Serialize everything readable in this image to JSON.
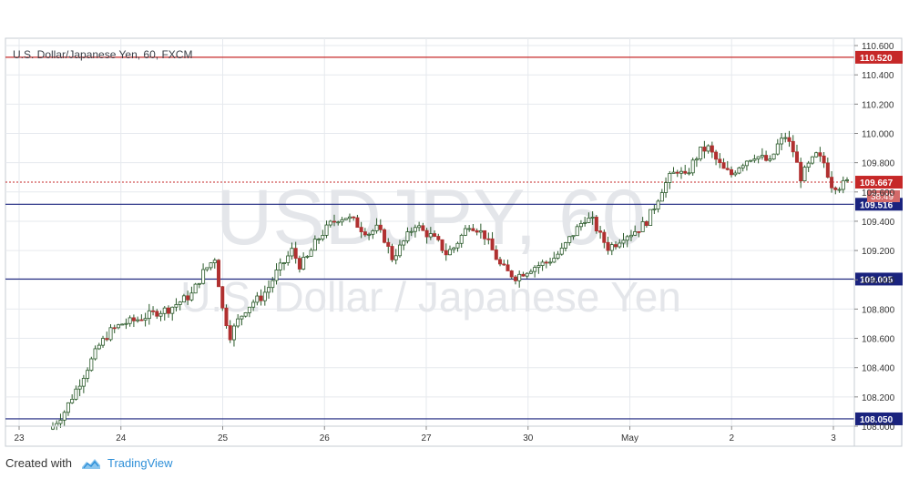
{
  "header": {
    "symbol_title": "U.S. Dollar/Japanese Yen, 60, FXCM"
  },
  "watermark": {
    "line1": "USDJPY, 60",
    "line2": "U.S. Dollar / Japanese Yen"
  },
  "footer": {
    "created_with": "Created with",
    "brand": "TradingView"
  },
  "colors": {
    "up": "#ffffff",
    "down": "#b03030",
    "candle_border": "#2a5a2a",
    "resistance_line": "#c62828",
    "support_line": "#1a237e",
    "current_price_line": "#c62828",
    "grid": "#e6e9ee"
  },
  "chart_data": {
    "type": "candlestick",
    "title": "U.S. Dollar/Japanese Yen, 60, FXCM",
    "ylim": [
      108.0,
      110.65
    ],
    "y_ticks": [
      "110.600",
      "110.400",
      "110.200",
      "110.000",
      "109.800",
      "109.600",
      "109.400",
      "109.200",
      "109.000",
      "108.800",
      "108.600",
      "108.400",
      "108.200",
      "108.000"
    ],
    "x_ticks": [
      "23",
      "24",
      "25",
      "26",
      "27",
      "30",
      "May",
      "2",
      "3"
    ],
    "horizontal_lines": [
      {
        "value": 110.52,
        "label": "110.520",
        "role": "resistance"
      },
      {
        "value": 109.516,
        "label": "109.516",
        "role": "support"
      },
      {
        "value": 109.005,
        "label": "109.005",
        "role": "support"
      },
      {
        "value": 108.05,
        "label": "108.050",
        "role": "support"
      }
    ],
    "current_price": {
      "value": 109.667,
      "label": "109.667",
      "countdown": "38:49"
    },
    "close_path": [
      [
        0,
        108.0
      ],
      [
        3,
        108.1
      ],
      [
        6,
        108.25
      ],
      [
        9,
        108.4
      ],
      [
        12,
        108.55
      ],
      [
        15,
        108.65
      ],
      [
        18,
        108.7
      ],
      [
        21,
        108.72
      ],
      [
        24,
        108.75
      ],
      [
        27,
        108.78
      ],
      [
        30,
        108.8
      ],
      [
        33,
        108.85
      ],
      [
        36,
        108.9
      ],
      [
        39,
        109.05
      ],
      [
        42,
        109.15
      ],
      [
        44,
        108.8
      ],
      [
        46,
        108.62
      ],
      [
        48,
        108.72
      ],
      [
        50,
        108.8
      ],
      [
        52,
        108.85
      ],
      [
        54,
        108.88
      ],
      [
        56,
        108.95
      ],
      [
        58,
        109.05
      ],
      [
        60,
        109.12
      ],
      [
        62,
        109.2
      ],
      [
        64,
        109.1
      ],
      [
        66,
        109.15
      ],
      [
        68,
        109.25
      ],
      [
        70,
        109.32
      ],
      [
        72,
        109.38
      ],
      [
        74,
        109.42
      ],
      [
        76,
        109.43
      ],
      [
        78,
        109.4
      ],
      [
        80,
        109.35
      ],
      [
        82,
        109.32
      ],
      [
        84,
        109.35
      ],
      [
        86,
        109.28
      ],
      [
        88,
        109.15
      ],
      [
        90,
        109.22
      ],
      [
        92,
        109.3
      ],
      [
        94,
        109.38
      ],
      [
        96,
        109.33
      ],
      [
        98,
        109.3
      ],
      [
        100,
        109.25
      ],
      [
        102,
        109.18
      ],
      [
        104,
        109.22
      ],
      [
        106,
        109.3
      ],
      [
        108,
        109.38
      ],
      [
        110,
        109.35
      ],
      [
        112,
        109.3
      ],
      [
        114,
        109.2
      ],
      [
        116,
        109.1
      ],
      [
        118,
        109.05
      ],
      [
        120,
        109.02
      ],
      [
        122,
        109.05
      ],
      [
        124,
        109.08
      ],
      [
        126,
        109.1
      ],
      [
        128,
        109.12
      ],
      [
        130,
        109.15
      ],
      [
        132,
        109.2
      ],
      [
        134,
        109.28
      ],
      [
        136,
        109.35
      ],
      [
        138,
        109.42
      ],
      [
        140,
        109.4
      ],
      [
        142,
        109.3
      ],
      [
        144,
        109.22
      ],
      [
        146,
        109.25
      ],
      [
        148,
        109.3
      ],
      [
        150,
        109.32
      ],
      [
        152,
        109.35
      ],
      [
        154,
        109.4
      ],
      [
        156,
        109.5
      ],
      [
        158,
        109.62
      ],
      [
        160,
        109.7
      ],
      [
        162,
        109.75
      ],
      [
        164,
        109.7
      ],
      [
        166,
        109.8
      ],
      [
        168,
        109.88
      ],
      [
        170,
        109.9
      ],
      [
        172,
        109.82
      ],
      [
        174,
        109.75
      ],
      [
        176,
        109.72
      ],
      [
        178,
        109.78
      ],
      [
        180,
        109.82
      ],
      [
        182,
        109.85
      ],
      [
        184,
        109.83
      ],
      [
        186,
        109.8
      ],
      [
        188,
        109.92
      ],
      [
        190,
        109.98
      ],
      [
        192,
        109.88
      ],
      [
        194,
        109.7
      ],
      [
        196,
        109.78
      ],
      [
        198,
        109.85
      ],
      [
        200,
        109.8
      ],
      [
        202,
        109.65
      ],
      [
        204,
        109.64
      ],
      [
        206,
        109.667
      ]
    ]
  }
}
